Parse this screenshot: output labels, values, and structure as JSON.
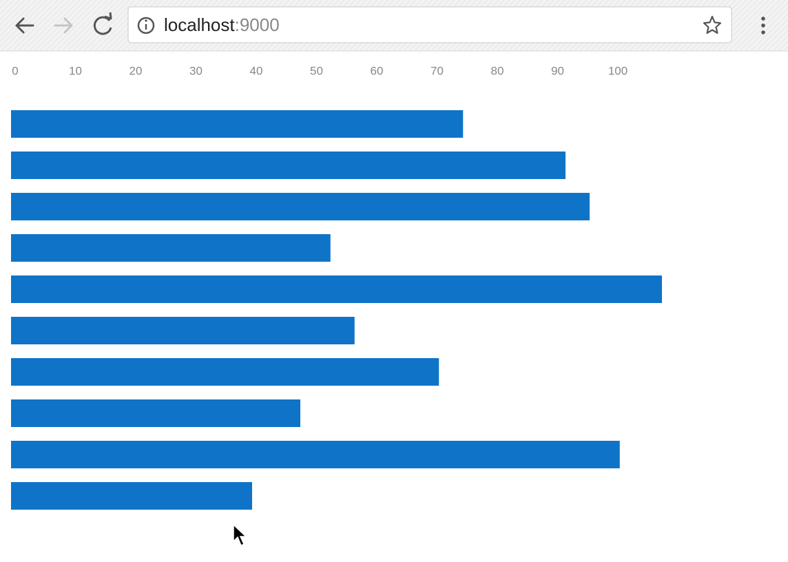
{
  "browser": {
    "url_host": "localhost",
    "url_port": ":9000"
  },
  "chart_data": {
    "type": "bar",
    "color": "#0f74c8",
    "grid": false,
    "values": [
      75,
      92,
      96,
      53,
      108,
      57,
      71,
      48,
      101,
      40
    ],
    "xlim": [
      0,
      120
    ],
    "xticks": [
      0,
      10,
      20,
      30,
      40,
      50,
      60,
      70,
      80,
      90,
      100
    ]
  }
}
